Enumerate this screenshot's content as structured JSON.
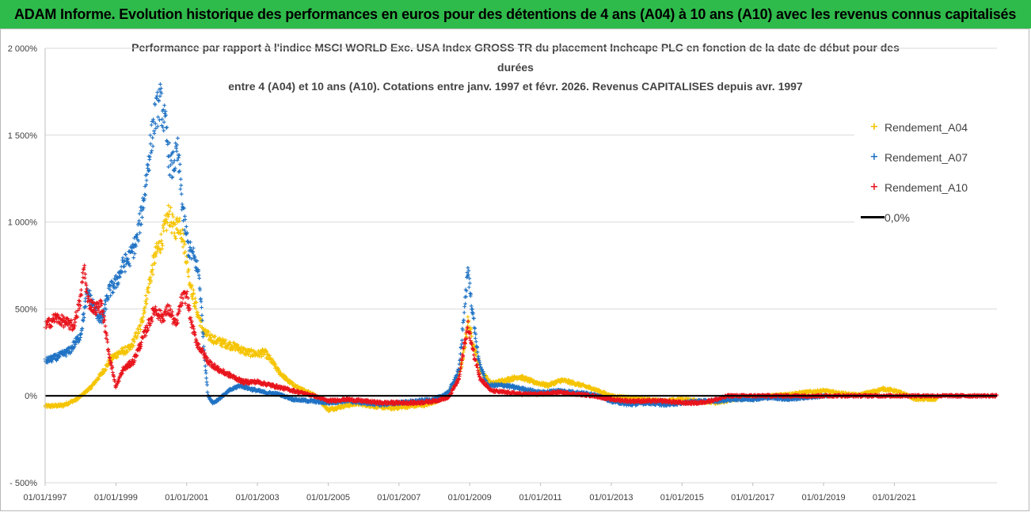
{
  "banner": {
    "text": "ADAM Informe. Evolution historique des performances en euros pour des détentions de 4 ans (A04) à 10 ans (A10) avec les revenus connus capitalisés"
  },
  "colors": {
    "banner_bg": "#2fbb4b",
    "a04": "#f5c400",
    "a07": "#1f72c4",
    "a10": "#e8141c",
    "zero": "#000000"
  },
  "chart_data": {
    "type": "scatter",
    "title_lines": [
      "Performance par rapport à l'indice MSCI WORLD Exc. USA Index GROSS TR  du placement Inchcape PLC en fonction de la date de début pour des",
      "durées",
      "entre 4 (A04) et 10 ans (A10).  Cotations entre janv. 1997 et févr. 2026. Revenus CAPITALISES depuis avr. 1997"
    ],
    "xlabel": "",
    "ylabel": "",
    "x_range": [
      1997.0,
      2023.9
    ],
    "ylim": [
      -500,
      2000
    ],
    "y_ticks": [
      -500,
      0,
      500,
      1000,
      1500,
      2000
    ],
    "y_tick_labels": [
      "- 500%",
      "0%",
      "500%",
      "1 000%",
      "1 500%",
      "2 000%"
    ],
    "x_ticks": [
      1997,
      1999,
      2001,
      2003,
      2005,
      2007,
      2009,
      2011,
      2013,
      2015,
      2017,
      2019,
      2021
    ],
    "x_tick_labels": [
      "01/01/1997",
      "01/01/1999",
      "01/01/2001",
      "01/01/2003",
      "01/01/2005",
      "01/01/2007",
      "01/01/2009",
      "01/01/2011",
      "01/01/2013",
      "01/01/2015",
      "01/01/2017",
      "01/01/2019",
      "01/01/2021"
    ],
    "grid": "horizontal",
    "legend_position": "right",
    "marker": "+",
    "series": [
      {
        "name": "Rendement_A04",
        "color": "#f5c400",
        "x_end": 2022.2,
        "keypoints": [
          [
            1997.0,
            -60
          ],
          [
            1997.5,
            -55
          ],
          [
            1997.9,
            -20
          ],
          [
            1998.3,
            50
          ],
          [
            1998.6,
            130
          ],
          [
            1998.9,
            220
          ],
          [
            1999.1,
            250
          ],
          [
            1999.4,
            270
          ],
          [
            1999.7,
            400
          ],
          [
            1999.9,
            600
          ],
          [
            2000.1,
            800
          ],
          [
            2000.3,
            900
          ],
          [
            2000.5,
            1050
          ],
          [
            2000.65,
            950
          ],
          [
            2000.8,
            1000
          ],
          [
            2000.95,
            850
          ],
          [
            2001.1,
            650
          ],
          [
            2001.3,
            480
          ],
          [
            2001.5,
            360
          ],
          [
            2001.8,
            320
          ],
          [
            2002.1,
            300
          ],
          [
            2002.4,
            280
          ],
          [
            2002.7,
            250
          ],
          [
            2003.0,
            240
          ],
          [
            2003.2,
            250
          ],
          [
            2003.4,
            200
          ],
          [
            2003.6,
            140
          ],
          [
            2003.9,
            80
          ],
          [
            2004.2,
            40
          ],
          [
            2004.6,
            10
          ],
          [
            2005.0,
            -80
          ],
          [
            2005.4,
            -60
          ],
          [
            2005.8,
            -45
          ],
          [
            2006.3,
            -60
          ],
          [
            2006.8,
            -70
          ],
          [
            2007.3,
            -60
          ],
          [
            2007.8,
            -50
          ],
          [
            2008.3,
            -10
          ],
          [
            2008.6,
            80
          ],
          [
            2008.8,
            200
          ],
          [
            2008.95,
            430
          ],
          [
            2009.1,
            300
          ],
          [
            2009.3,
            150
          ],
          [
            2009.6,
            70
          ],
          [
            2010.0,
            90
          ],
          [
            2010.4,
            110
          ],
          [
            2010.8,
            80
          ],
          [
            2011.2,
            60
          ],
          [
            2011.6,
            90
          ],
          [
            2012.0,
            70
          ],
          [
            2012.5,
            40
          ],
          [
            2013.0,
            0
          ],
          [
            2013.5,
            -10
          ],
          [
            2014.0,
            -20
          ],
          [
            2014.5,
            -30
          ],
          [
            2015.0,
            -20
          ],
          [
            2015.5,
            -30
          ],
          [
            2016.0,
            -40
          ],
          [
            2016.5,
            -20
          ],
          [
            2017.0,
            -10
          ],
          [
            2017.5,
            0
          ],
          [
            2018.0,
            10
          ],
          [
            2018.5,
            20
          ],
          [
            2019.0,
            30
          ],
          [
            2019.3,
            20
          ],
          [
            2019.7,
            10
          ],
          [
            2020.0,
            5
          ],
          [
            2020.3,
            20
          ],
          [
            2020.7,
            40
          ],
          [
            2021.0,
            30
          ],
          [
            2021.3,
            10
          ],
          [
            2021.6,
            -20
          ],
          [
            2022.2,
            -20
          ]
        ]
      },
      {
        "name": "Rendement_A07",
        "color": "#1f72c4",
        "x_end": 2019.1,
        "keypoints": [
          [
            1997.0,
            200
          ],
          [
            1997.3,
            220
          ],
          [
            1997.7,
            260
          ],
          [
            1998.0,
            350
          ],
          [
            1998.2,
            600
          ],
          [
            1998.4,
            500
          ],
          [
            1998.6,
            430
          ],
          [
            1998.8,
            600
          ],
          [
            1999.0,
            650
          ],
          [
            1999.2,
            750
          ],
          [
            1999.4,
            800
          ],
          [
            1999.6,
            900
          ],
          [
            1999.8,
            1150
          ],
          [
            1999.95,
            1400
          ],
          [
            2000.1,
            1600
          ],
          [
            2000.25,
            1700
          ],
          [
            2000.4,
            1550
          ],
          [
            2000.55,
            1300
          ],
          [
            2000.75,
            1400
          ],
          [
            2000.9,
            1050
          ],
          [
            2001.05,
            850
          ],
          [
            2001.2,
            800
          ],
          [
            2001.35,
            700
          ],
          [
            2001.5,
            250
          ],
          [
            2001.6,
            0
          ],
          [
            2001.75,
            -40
          ],
          [
            2001.9,
            -20
          ],
          [
            2002.2,
            30
          ],
          [
            2002.5,
            60
          ],
          [
            2002.8,
            40
          ],
          [
            2003.2,
            20
          ],
          [
            2003.6,
            10
          ],
          [
            2004.0,
            -20
          ],
          [
            2004.5,
            -30
          ],
          [
            2005.0,
            -40
          ],
          [
            2005.5,
            -30
          ],
          [
            2006.0,
            -40
          ],
          [
            2006.5,
            -50
          ],
          [
            2007.0,
            -40
          ],
          [
            2007.5,
            -30
          ],
          [
            2008.0,
            -20
          ],
          [
            2008.4,
            20
          ],
          [
            2008.7,
            150
          ],
          [
            2008.85,
            500
          ],
          [
            2008.95,
            720
          ],
          [
            2009.1,
            450
          ],
          [
            2009.25,
            200
          ],
          [
            2009.5,
            60
          ],
          [
            2010.0,
            60
          ],
          [
            2010.5,
            40
          ],
          [
            2011.0,
            20
          ],
          [
            2011.5,
            30
          ],
          [
            2012.0,
            20
          ],
          [
            2012.5,
            10
          ],
          [
            2013.0,
            -30
          ],
          [
            2013.5,
            -50
          ],
          [
            2014.0,
            -40
          ],
          [
            2014.5,
            -50
          ],
          [
            2015.0,
            -40
          ],
          [
            2015.5,
            -30
          ],
          [
            2016.0,
            -30
          ],
          [
            2016.5,
            -20
          ],
          [
            2017.0,
            -20
          ],
          [
            2017.5,
            -10
          ],
          [
            2018.0,
            -20
          ],
          [
            2018.5,
            -10
          ],
          [
            2019.1,
            0
          ]
        ]
      },
      {
        "name": "Rendement_A10",
        "color": "#e8141c",
        "x_end": 2023.9,
        "keypoints": [
          [
            1997.0,
            400
          ],
          [
            1997.3,
            450
          ],
          [
            1997.6,
            420
          ],
          [
            1997.8,
            400
          ],
          [
            1998.0,
            550
          ],
          [
            1998.1,
            750
          ],
          [
            1998.2,
            550
          ],
          [
            1998.4,
            500
          ],
          [
            1998.6,
            520
          ],
          [
            1998.8,
            250
          ],
          [
            1999.0,
            50
          ],
          [
            1999.2,
            150
          ],
          [
            1999.5,
            200
          ],
          [
            1999.7,
            300
          ],
          [
            1999.9,
            400
          ],
          [
            2000.1,
            500
          ],
          [
            2000.3,
            450
          ],
          [
            2000.5,
            500
          ],
          [
            2000.7,
            400
          ],
          [
            2000.85,
            550
          ],
          [
            2001.0,
            580
          ],
          [
            2001.15,
            400
          ],
          [
            2001.3,
            300
          ],
          [
            2001.6,
            200
          ],
          [
            2001.9,
            150
          ],
          [
            2002.2,
            120
          ],
          [
            2002.6,
            80
          ],
          [
            2003.0,
            80
          ],
          [
            2003.4,
            60
          ],
          [
            2003.8,
            40
          ],
          [
            2004.2,
            20
          ],
          [
            2004.6,
            0
          ],
          [
            2005.0,
            -30
          ],
          [
            2005.5,
            -20
          ],
          [
            2006.0,
            -30
          ],
          [
            2006.5,
            -40
          ],
          [
            2007.0,
            -40
          ],
          [
            2007.5,
            -40
          ],
          [
            2008.0,
            -30
          ],
          [
            2008.4,
            -10
          ],
          [
            2008.7,
            100
          ],
          [
            2008.85,
            300
          ],
          [
            2008.95,
            400
          ],
          [
            2009.1,
            250
          ],
          [
            2009.3,
            100
          ],
          [
            2009.6,
            30
          ],
          [
            2010.0,
            20
          ],
          [
            2010.5,
            10
          ],
          [
            2011.0,
            10
          ],
          [
            2011.5,
            20
          ],
          [
            2012.0,
            10
          ],
          [
            2012.5,
            0
          ],
          [
            2013.0,
            -20
          ],
          [
            2013.5,
            -30
          ],
          [
            2014.0,
            -30
          ],
          [
            2014.5,
            -30
          ],
          [
            2015.0,
            -40
          ],
          [
            2015.5,
            -40
          ],
          [
            2016.0,
            -20
          ],
          [
            2016.3,
            0
          ],
          [
            2017.0,
            0
          ],
          [
            2018.0,
            0
          ],
          [
            2019.0,
            0
          ],
          [
            2020.0,
            0
          ],
          [
            2021.0,
            0
          ],
          [
            2022.0,
            0
          ],
          [
            2023.0,
            0
          ],
          [
            2023.9,
            0
          ]
        ]
      }
    ],
    "reference_line": {
      "name": "0,0%",
      "y": 0,
      "color": "#000000"
    }
  },
  "legend": {
    "items": [
      {
        "label": "Rendement_A04",
        "marker": "+",
        "color": "#f5c400"
      },
      {
        "label": "Rendement_A07",
        "marker": "+",
        "color": "#1f72c4"
      },
      {
        "label": "Rendement_A10",
        "marker": "+",
        "color": "#e8141c"
      },
      {
        "label": "0,0%",
        "marker": "line",
        "color": "#000000"
      }
    ]
  }
}
